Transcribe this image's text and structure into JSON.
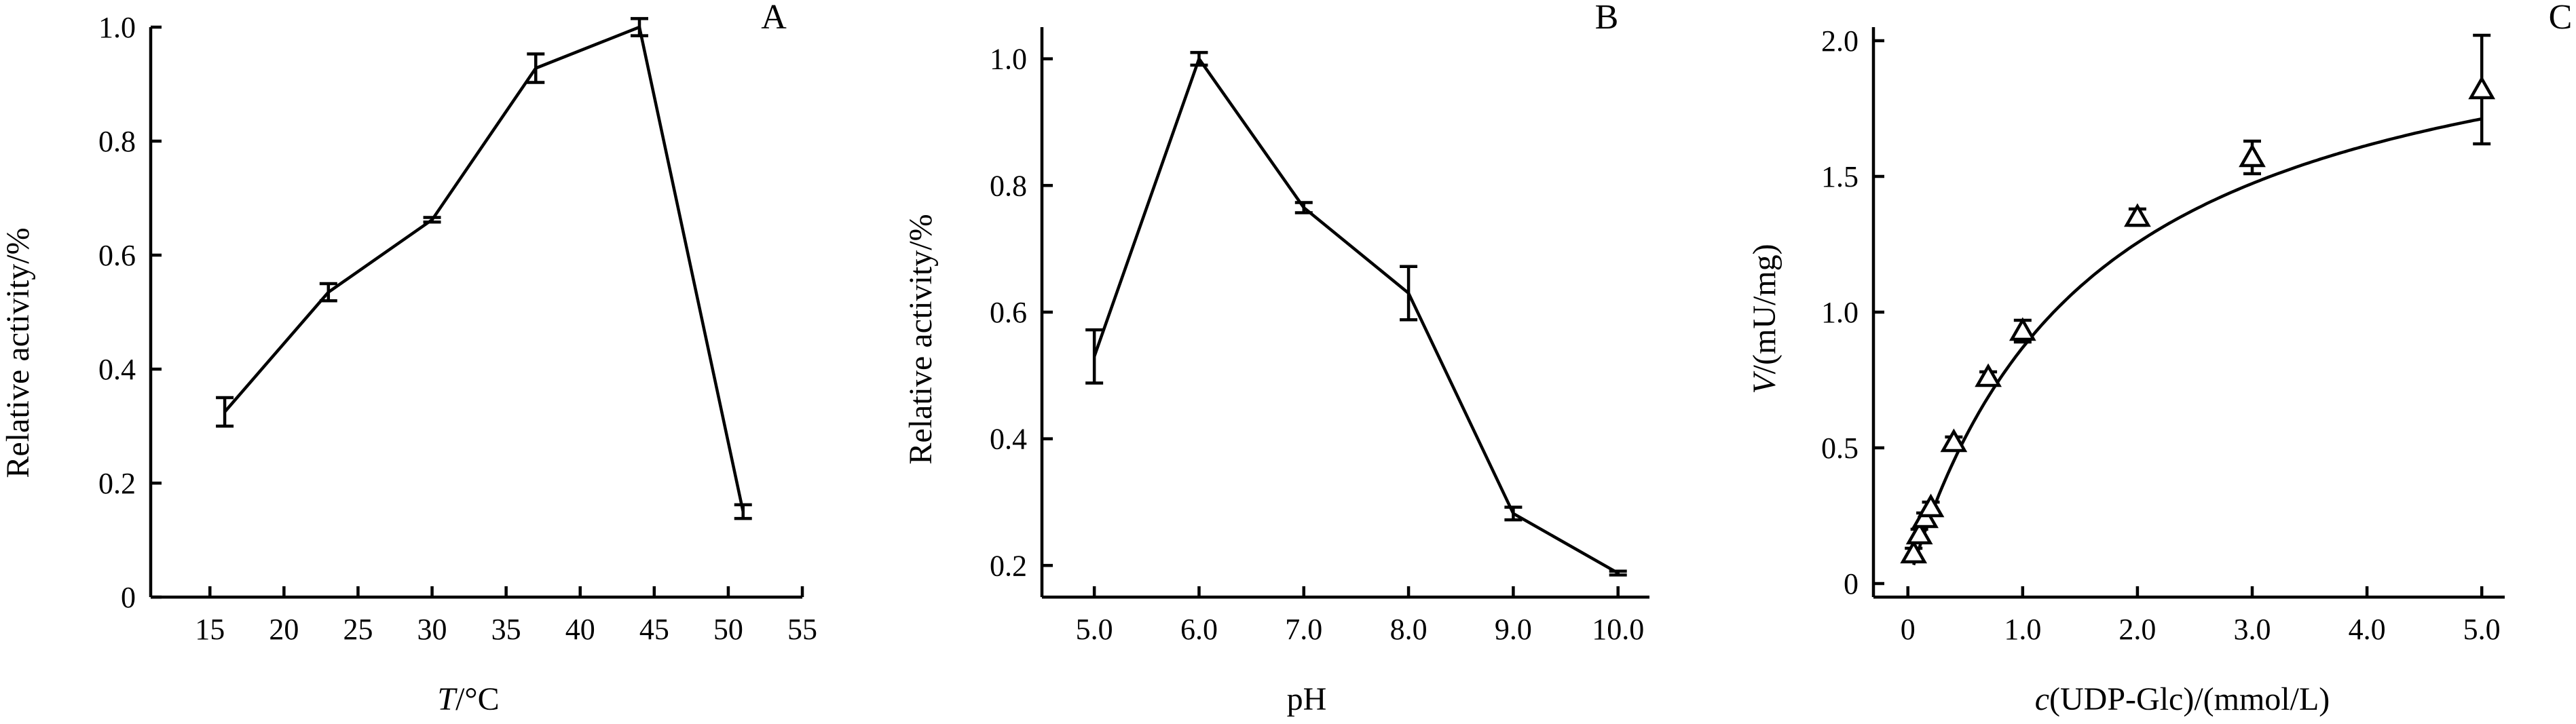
{
  "chart_data": [
    {
      "type": "line",
      "panel_label": "A",
      "xlabel_italic": "T",
      "xlabel_rest": "/°C",
      "ylabel": "Relative activity/%",
      "x": [
        16,
        23,
        30,
        37,
        44,
        51
      ],
      "y": [
        0.325,
        0.535,
        0.662,
        0.928,
        1.0,
        0.15
      ],
      "err": [
        0.025,
        0.015,
        0.004,
        0.025,
        0.015,
        0.012
      ],
      "xlim": [
        11,
        55
      ],
      "ylim": [
        0,
        1.0
      ],
      "xticks": [
        15,
        20,
        25,
        30,
        35,
        40,
        45,
        50,
        55
      ],
      "xtick_labels": [
        "15",
        "20",
        "25",
        "30",
        "35",
        "40",
        "45",
        "50",
        "55"
      ],
      "yticks": [
        0,
        0.2,
        0.4,
        0.6,
        0.8,
        1.0
      ],
      "ytick_labels": [
        "0",
        "0.2",
        "0.4",
        "0.6",
        "0.8",
        "1.0"
      ],
      "grid": false,
      "markers": "none"
    },
    {
      "type": "line",
      "panel_label": "B",
      "xlabel_italic": "",
      "xlabel_rest": "pH",
      "ylabel": "Relative activity/%",
      "x": [
        5.0,
        6.0,
        7.0,
        8.0,
        9.0,
        10.0
      ],
      "y": [
        0.53,
        1.0,
        0.765,
        0.63,
        0.282,
        0.188
      ],
      "err": [
        0.042,
        0.01,
        0.008,
        0.042,
        0.01,
        0.003
      ],
      "xlim": [
        4.5,
        10.3
      ],
      "ylim": [
        0.15,
        1.05
      ],
      "xticks": [
        5,
        6,
        7,
        8,
        9,
        10
      ],
      "xtick_labels": [
        "5.0",
        "6.0",
        "7.0",
        "8.0",
        "9.0",
        "10.0"
      ],
      "yticks": [
        0.2,
        0.4,
        0.6,
        0.8,
        1.0
      ],
      "ytick_labels": [
        "0.2",
        "0.4",
        "0.6",
        "0.8",
        "1.0"
      ],
      "grid": false,
      "markers": "none"
    },
    {
      "type": "scatter",
      "panel_label": "C",
      "xlabel_italic": "c",
      "xlabel_rest": "(UDP-Glc)/(mmol/L)",
      "ylabel_italic": "V",
      "ylabel": "/(mU/mg)",
      "x": [
        0.05,
        0.1,
        0.15,
        0.2,
        0.4,
        0.7,
        1.0,
        2.0,
        3.0,
        5.0
      ],
      "y": [
        0.11,
        0.18,
        0.24,
        0.28,
        0.52,
        0.76,
        0.93,
        1.35,
        1.57,
        1.82
      ],
      "err": [
        0.02,
        0.02,
        0.02,
        0.02,
        0.02,
        0.02,
        0.04,
        0.03,
        0.06,
        0.2
      ],
      "fit": {
        "model": "Michaelis-Menten",
        "vmax": 2.26,
        "km": 1.6
      },
      "xlim": [
        -0.3,
        5.2
      ],
      "ylim": [
        -0.05,
        2.05
      ],
      "xticks": [
        0,
        1,
        2,
        3,
        4,
        5
      ],
      "xtick_labels": [
        "0",
        "1.0",
        "2.0",
        "3.0",
        "4.0",
        "5.0"
      ],
      "yticks": [
        0,
        0.5,
        1.0,
        1.5,
        2.0
      ],
      "ytick_labels": [
        "0",
        "0.5",
        "1.0",
        "1.5",
        "2.0"
      ],
      "grid": false,
      "markers": "open-triangle"
    }
  ]
}
